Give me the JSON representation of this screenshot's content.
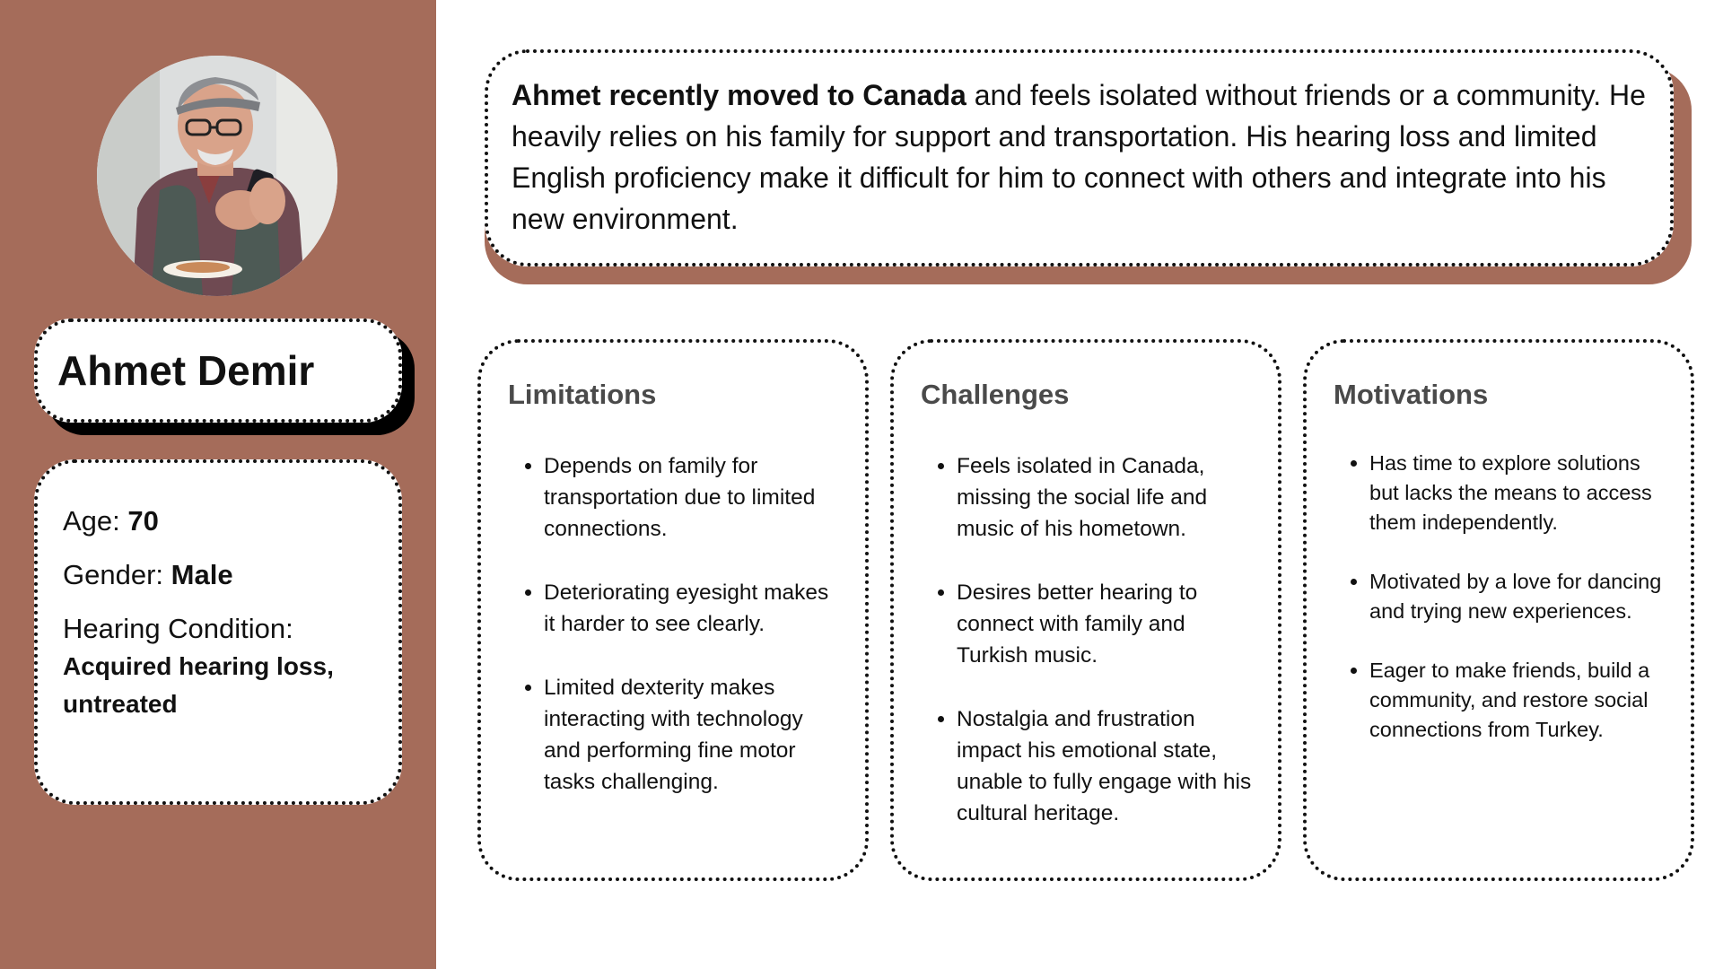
{
  "persona": {
    "name": "Ahmet Demir",
    "age_label": "Age:",
    "age": "70",
    "gender_label": "Gender:",
    "gender": "Male",
    "hearing_label": "Hearing Condition:",
    "hearing_value": "Acquired hearing loss, untreated"
  },
  "summary": {
    "lead_bold": "Ahmet recently moved to Canada",
    "rest": " and feels isolated without friends or a community. He heavily relies on his family for support and transportation. His hearing loss and limited English proficiency make it difficult for him to connect with others and integrate into his new environment."
  },
  "limitations": {
    "title": "Limitations",
    "items": [
      "Depends on family for transportation due to limited connections.",
      "Deteriorating eyesight makes it harder to see clearly.",
      "Limited dexterity makes interacting with technology and performing fine motor tasks challenging."
    ]
  },
  "challenges": {
    "title": "Challenges",
    "items": [
      "Feels isolated in Canada, missing the social life and music of his hometown.",
      "Desires better hearing to connect with family and Turkish music.",
      "Nostalgia and frustration impact his emotional state, unable to fully engage with his cultural heritage."
    ]
  },
  "motivations": {
    "title": "Motivations",
    "items": [
      "Has time to explore solutions but lacks the means to access them independently.",
      "Motivated by a love for dancing and trying new experiences.",
      "Eager to make friends, build a community, and restore social connections from Turkey."
    ]
  },
  "colors": {
    "sidebar": "#a56c5a",
    "card_border": "#111111",
    "heading_gray": "#4a4a4a"
  }
}
